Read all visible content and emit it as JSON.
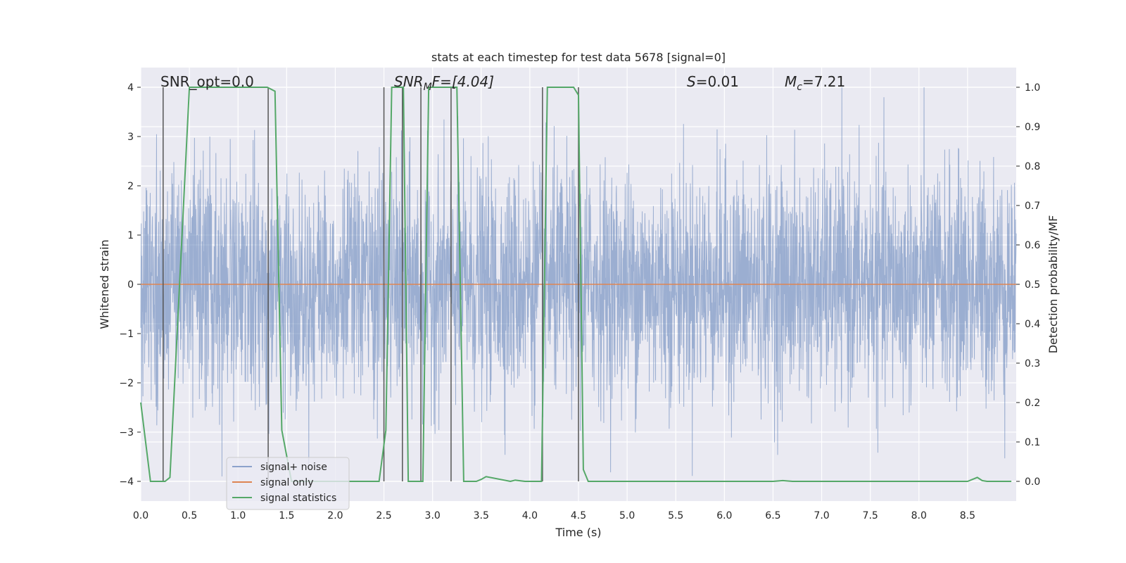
{
  "chart_data": {
    "type": "line",
    "title": "stats at each timestep for test data 5678 [signal=0]",
    "xlabel": "Time (s)",
    "ylabel": "Whitened strain",
    "ylabel_right": "Detection probability/MF",
    "xlim": [
      0.0,
      9.0
    ],
    "ylim": [
      -4.4,
      4.4
    ],
    "ylim_right": [
      -0.05,
      1.05
    ],
    "x_ticks": [
      0.0,
      0.5,
      1.0,
      1.5,
      2.0,
      2.5,
      3.0,
      3.5,
      4.0,
      4.5,
      5.0,
      5.5,
      6.0,
      6.5,
      7.0,
      7.5,
      8.0,
      8.5
    ],
    "x_tick_labels": [
      "0.0",
      "0.5",
      "1.0",
      "1.5",
      "2.0",
      "2.5",
      "3.0",
      "3.5",
      "4.0",
      "4.5",
      "5.0",
      "5.5",
      "6.0",
      "6.5",
      "7.0",
      "7.5",
      "8.0",
      "8.5"
    ],
    "y_ticks": [
      -4,
      -3,
      -2,
      -1,
      0,
      1,
      2,
      3,
      4
    ],
    "y_tick_labels": [
      "−4",
      "−3",
      "−2",
      "−1",
      "0",
      "1",
      "2",
      "3",
      "4"
    ],
    "y_ticks_right": [
      0.0,
      0.1,
      0.2,
      0.3,
      0.4,
      0.5,
      0.6,
      0.7,
      0.8,
      0.9,
      1.0
    ],
    "y_tick_labels_right": [
      "0.0",
      "0.1",
      "0.2",
      "0.3",
      "0.4",
      "0.5",
      "0.6",
      "0.7",
      "0.8",
      "0.9",
      "1.0"
    ],
    "grid": true,
    "background": "#eaeaf2",
    "annotations": {
      "snr_opt": "SNR_opt=0.0",
      "snr_mf_main": "SNR",
      "snr_mf_sub": "M",
      "snr_mf_rest": "F=[4.04]",
      "s_symbol": "S",
      "s_rest": "=0.01",
      "mc_main": "M",
      "mc_sub": "c",
      "mc_rest": "=7.21"
    },
    "legend": {
      "position": "lower-left",
      "entries": [
        "signal+ noise",
        "signal only",
        "signal statistics"
      ]
    },
    "series": [
      {
        "name": "signal+ noise",
        "color": "#4c72b0",
        "axis": "left",
        "noise": {
          "t_start": 0.0,
          "t_end": 9.0,
          "std": 1.0,
          "peak_max": 4.0,
          "peak_min": -3.9
        }
      },
      {
        "name": "signal only",
        "color": "#dd8452",
        "axis": "left",
        "x": [
          0.0,
          9.0
        ],
        "y": [
          0.0,
          0.0
        ]
      },
      {
        "name": "signal statistics",
        "color": "#55a868",
        "axis": "right",
        "x": [
          0.0,
          0.05,
          0.1,
          0.2,
          0.25,
          0.3,
          0.5,
          1.0,
          1.3,
          1.38,
          1.45,
          1.55,
          2.0,
          2.45,
          2.52,
          2.58,
          2.7,
          2.75,
          2.85,
          2.9,
          2.96,
          3.05,
          3.2,
          3.25,
          3.32,
          3.45,
          3.5,
          3.55,
          3.8,
          3.85,
          3.95,
          4.12,
          4.18,
          4.25,
          4.45,
          4.5,
          4.55,
          4.6,
          4.65,
          5.0,
          6.0,
          6.5,
          6.6,
          6.7,
          8.5,
          8.6,
          8.65,
          8.7,
          8.95
        ],
        "y": [
          0.2,
          0.1,
          0.0,
          0.0,
          0.0,
          0.01,
          1.0,
          1.0,
          1.0,
          0.99,
          0.13,
          0.0,
          0.0,
          0.0,
          0.13,
          1.0,
          1.0,
          0.0,
          0.0,
          0.0,
          1.0,
          1.0,
          1.0,
          1.0,
          0.0,
          0.0,
          0.005,
          0.012,
          0.0,
          0.003,
          0.0,
          0.0,
          1.0,
          1.0,
          1.0,
          0.98,
          0.03,
          0.0,
          0.0,
          0.0,
          0.0,
          0.0,
          0.002,
          0.0,
          0.0,
          0.01,
          0.002,
          0.0,
          0.0
        ]
      }
    ],
    "vertical_markers": {
      "color": "#555555",
      "x": [
        0.23,
        1.31,
        2.5,
        2.69,
        2.88,
        3.19,
        4.13,
        4.5
      ]
    }
  }
}
